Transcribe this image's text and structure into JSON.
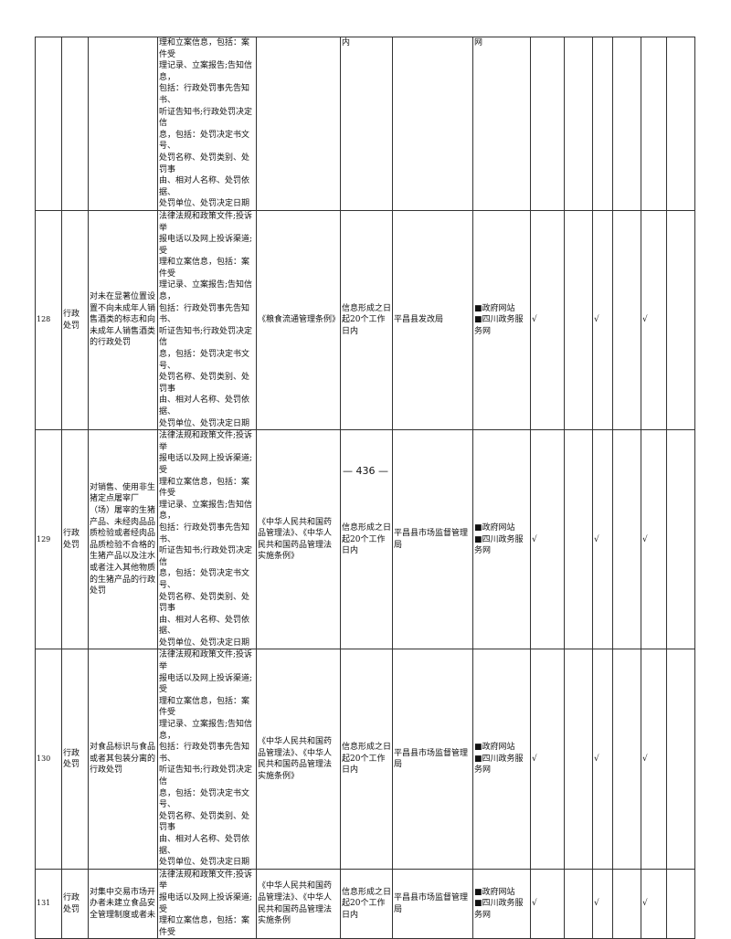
{
  "rows": [
    {
      "no": "",
      "type": "",
      "item": "",
      "content": "理和立案信息，包括：案件受\n理记录、立案报告;告知信息，\n包括：行政处罚事先告知书、\n听证告知书;行政处罚决定信\n息，包括：处罚决定书文号、\n处罚名称、处罚类别、处罚事\n由、相对人名称、处罚依据、\n处罚单位、处罚决定日期",
      "basis": "",
      "time": "内",
      "subject": "",
      "channel": "网",
      "c1": "",
      "c2": "",
      "c3": "",
      "c4": "",
      "c5": "",
      "c6": ""
    },
    {
      "no": "128",
      "type": "行政处罚",
      "item": "对未在显著位置设置不向未成年人销售酒类的标志和向未成年人销售酒类的行政处罚",
      "content": "法律法规和政策文件;投诉举\n报电话以及网上投诉渠道;受\n理和立案信息，包括：案件受\n理记录、立案报告;告知信息，\n包括：行政处罚事先告知书、\n听证告知书;行政处罚决定信\n息，包括：处罚决定书文号、\n处罚名称、处罚类别、处罚事\n由、相对人名称、处罚依据、\n处罚单位、处罚决定日期",
      "basis": "《粮食流通管理条例》",
      "time": "信息形成之日起20个工作日内",
      "subject": "平昌县发改局",
      "channel": "■政府网站\n■四川政务服务网",
      "c1": "√",
      "c2": "",
      "c3": "√",
      "c4": "",
      "c5": "√",
      "c6": ""
    },
    {
      "no": "129",
      "type": "行政处罚",
      "item": "对销售、使用非生猪定点屠宰厂（场）屠宰的生猪产品、未经肉品品质检验或者经肉品品质检验不合格的生猪产品以及注水或者注入其他物质的生猪产品的行政处罚",
      "content": "法律法规和政策文件;投诉举\n报电话以及网上投诉渠道;受\n理和立案信息，包括：案件受\n理记录、立案报告;告知信息，\n包括：行政处罚事先告知书、\n听证告知书;行政处罚决定信\n息，包括：处罚决定书文号、\n处罚名称、处罚类别、处罚事\n由、相对人名称、处罚依据、\n处罚单位、处罚决定日期",
      "basis": "《中华人民共和国药品管理法》、《中华人民共和国药品管理法实施条例》",
      "time": "信息形成之日起20个工作日内",
      "subject": "平昌县市场监督管理局",
      "channel": "■政府网站\n■四川政务服务网",
      "c1": "√",
      "c2": "",
      "c3": "√",
      "c4": "",
      "c5": "√",
      "c6": ""
    },
    {
      "no": "130",
      "type": "行政处罚",
      "item": "对食品标识与食品或者其包装分离的行政处罚",
      "content": "法律法规和政策文件;投诉举\n报电话以及网上投诉渠道;受\n理和立案信息，包括：案件受\n理记录、立案报告;告知信息，\n包括：行政处罚事先告知书、\n听证告知书;行政处罚决定信\n息，包括：处罚决定书文号、\n处罚名称、处罚类别、处罚事\n由、相对人名称、处罚依据、\n处罚单位、处罚决定日期",
      "basis": "《中华人民共和国药品管理法》、《中华人民共和国药品管理法实施条例》",
      "time": "信息形成之日起20个工作日内",
      "subject": "平昌县市场监督管理局",
      "channel": "■政府网站\n■四川政务服务网",
      "c1": "√",
      "c2": "",
      "c3": "√",
      "c4": "",
      "c5": "√",
      "c6": ""
    },
    {
      "no": "131",
      "type": "行政处罚",
      "item": "对集中交易市场开办者未建立食品安全管理制度或者未",
      "content": "法律法规和政策文件;投诉举\n报电话以及网上投诉渠道;受\n理和立案信息，包括：案件受",
      "basis": "《中华人民共和国药品管理法》、《中华人民共和国药品管理法实施条例",
      "time": "信息形成之日起20个工作日内",
      "subject": "平昌县市场监督管理局",
      "channel": "■政府网站\n■四川政务服务网",
      "c1": "√",
      "c2": "",
      "c3": "√",
      "c4": "",
      "c5": "√",
      "c6": ""
    }
  ],
  "page_number": "— 436 —"
}
